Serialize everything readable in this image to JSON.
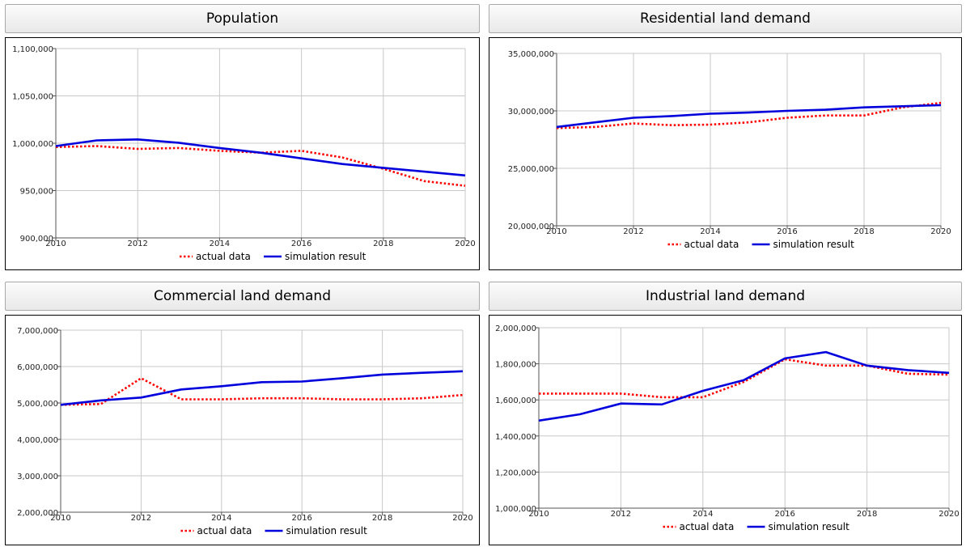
{
  "colors": {
    "actual": "#ff0000",
    "simulation": "#0000dd",
    "grid": "#c8c8c8",
    "axis": "#555555"
  },
  "chart_data": [
    {
      "type": "line",
      "title": "Population",
      "x": [
        2010,
        2011,
        2012,
        2013,
        2014,
        2015,
        2016,
        2017,
        2018,
        2019,
        2020
      ],
      "xlim": [
        2010,
        2020
      ],
      "xticks": [
        2010,
        2012,
        2014,
        2016,
        2018,
        2020
      ],
      "ylim": [
        900000,
        1100000
      ],
      "yticks": [
        900000,
        950000,
        1000000,
        1050000,
        1100000
      ],
      "ytick_labels": [
        "900,000",
        "950,000",
        "1,000,000",
        "1,050,000",
        "1,100,000"
      ],
      "legend_position": "bottom-center",
      "series": [
        {
          "name": "actual data",
          "style": "dotted",
          "values": [
            996000,
            997000,
            994000,
            995000,
            992000,
            990000,
            992000,
            985000,
            973000,
            960000,
            955000
          ]
        },
        {
          "name": "simulation result",
          "style": "solid",
          "values": [
            997000,
            1003000,
            1004000,
            1000500,
            995000,
            990000,
            984000,
            978000,
            974000,
            970000,
            966000
          ]
        }
      ]
    },
    {
      "type": "line",
      "title": "Residential land demand",
      "x": [
        2010,
        2011,
        2012,
        2013,
        2014,
        2015,
        2016,
        2017,
        2018,
        2019,
        2020
      ],
      "xlim": [
        2010,
        2020
      ],
      "xticks": [
        2010,
        2012,
        2014,
        2016,
        2018,
        2020
      ],
      "ylim": [
        20000000,
        35000000
      ],
      "yticks": [
        20000000,
        25000000,
        30000000,
        35000000
      ],
      "ytick_labels": [
        "20,000,000",
        "25,000,000",
        "30,000,000",
        "35,000,000"
      ],
      "legend_position": "bottom-center",
      "series": [
        {
          "name": "actual data",
          "style": "dotted",
          "values": [
            28500000,
            28600000,
            28900000,
            28750000,
            28800000,
            29000000,
            29400000,
            29600000,
            29600000,
            30300000,
            30700000
          ]
        },
        {
          "name": "simulation result",
          "style": "solid",
          "values": [
            28600000,
            29000000,
            29400000,
            29550000,
            29750000,
            29850000,
            30000000,
            30100000,
            30300000,
            30400000,
            30500000
          ]
        }
      ]
    },
    {
      "type": "line",
      "title": "Commercial land demand",
      "x": [
        2010,
        2011,
        2012,
        2013,
        2014,
        2015,
        2016,
        2017,
        2018,
        2019,
        2020
      ],
      "xlim": [
        2010,
        2020
      ],
      "xticks": [
        2010,
        2012,
        2014,
        2016,
        2018,
        2020
      ],
      "ylim": [
        2000000,
        7000000
      ],
      "yticks": [
        2000000,
        3000000,
        4000000,
        5000000,
        6000000,
        7000000
      ],
      "ytick_labels": [
        "2,000,000",
        "3,000,000",
        "4,000,000",
        "5,000,000",
        "6,000,000",
        "7,000,000"
      ],
      "legend_position": "bottom-center",
      "series": [
        {
          "name": "actual data",
          "style": "dotted",
          "values": [
            4950000,
            4970000,
            5680000,
            5100000,
            5100000,
            5130000,
            5130000,
            5100000,
            5100000,
            5130000,
            5220000
          ]
        },
        {
          "name": "simulation result",
          "style": "solid",
          "values": [
            4950000,
            5070000,
            5150000,
            5370000,
            5460000,
            5570000,
            5590000,
            5680000,
            5780000,
            5830000,
            5870000
          ]
        }
      ]
    },
    {
      "type": "line",
      "title": "Industrial land demand",
      "x": [
        2010,
        2011,
        2012,
        2013,
        2014,
        2015,
        2016,
        2017,
        2018,
        2019,
        2020
      ],
      "xlim": [
        2010,
        2020
      ],
      "xticks": [
        2010,
        2012,
        2014,
        2016,
        2018,
        2020
      ],
      "ylim": [
        1000000,
        2000000
      ],
      "yticks": [
        1000000,
        1200000,
        1400000,
        1600000,
        1800000,
        2000000
      ],
      "ytick_labels": [
        "1,000,000",
        "1,200,000",
        "1,400,000",
        "1,600,000",
        "1,800,000",
        "2,000,000"
      ],
      "legend_position": "bottom-center",
      "series": [
        {
          "name": "actual data",
          "style": "dotted",
          "values": [
            1635000,
            1635000,
            1635000,
            1615000,
            1615000,
            1700000,
            1825000,
            1790000,
            1790000,
            1745000,
            1740000
          ]
        },
        {
          "name": "simulation result",
          "style": "solid",
          "values": [
            1485000,
            1520000,
            1580000,
            1575000,
            1650000,
            1710000,
            1830000,
            1865000,
            1790000,
            1765000,
            1750000
          ]
        }
      ]
    }
  ]
}
